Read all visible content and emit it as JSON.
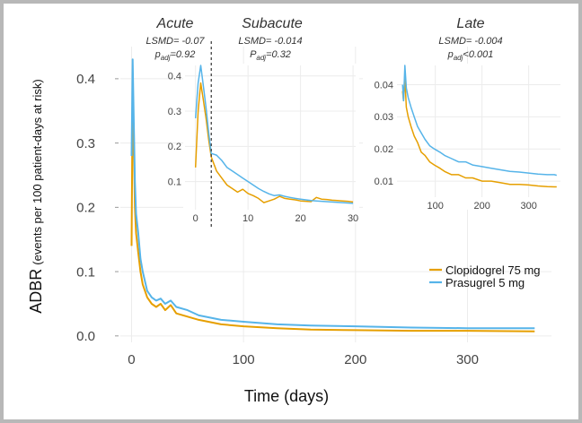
{
  "chart_data": [
    {
      "type": "line",
      "title": "",
      "xlabel": "Time (days)",
      "ylabel": "ADBR",
      "ylabel_note": "(events per 100 patient-days at risk)",
      "xlim": [
        -10,
        375
      ],
      "ylim": [
        -0.01,
        0.45
      ],
      "x_ticks": [
        0,
        100,
        200,
        300
      ],
      "y_ticks": [
        0.0,
        0.1,
        0.2,
        0.3,
        0.4
      ],
      "x_tick_labels": [
        "0",
        "100",
        "200",
        "300"
      ],
      "y_tick_labels": [
        "0.0",
        "0.1",
        "0.2",
        "0.3",
        "0.4"
      ],
      "grid": true,
      "legend": "bottom-right",
      "series": [
        {
          "name": "Clopidogrel 75 mg",
          "color": "#E69F00",
          "points": [
            [
              0,
              0.14
            ],
            [
              1,
              0.38
            ],
            [
              2,
              0.3
            ],
            [
              3,
              0.2
            ],
            [
              4,
              0.16
            ],
            [
              6,
              0.13
            ],
            [
              8,
              0.1
            ],
            [
              10,
              0.08
            ],
            [
              12,
              0.07
            ],
            [
              14,
              0.06
            ],
            [
              18,
              0.05
            ],
            [
              22,
              0.045
            ],
            [
              26,
              0.05
            ],
            [
              30,
              0.04
            ],
            [
              35,
              0.048
            ],
            [
              40,
              0.035
            ],
            [
              50,
              0.03
            ],
            [
              60,
              0.025
            ],
            [
              80,
              0.018
            ],
            [
              100,
              0.015
            ],
            [
              130,
              0.012
            ],
            [
              160,
              0.01
            ],
            [
              200,
              0.009
            ],
            [
              250,
              0.008
            ],
            [
              300,
              0.008
            ],
            [
              360,
              0.007
            ]
          ]
        },
        {
          "name": "Prasugrel 5 mg",
          "color": "#56B4E9",
          "points": [
            [
              0,
              0.28
            ],
            [
              1,
              0.43
            ],
            [
              2,
              0.33
            ],
            [
              3,
              0.24
            ],
            [
              4,
              0.19
            ],
            [
              6,
              0.16
            ],
            [
              8,
              0.12
            ],
            [
              10,
              0.1
            ],
            [
              12,
              0.085
            ],
            [
              14,
              0.07
            ],
            [
              18,
              0.06
            ],
            [
              22,
              0.055
            ],
            [
              26,
              0.058
            ],
            [
              30,
              0.05
            ],
            [
              35,
              0.055
            ],
            [
              40,
              0.045
            ],
            [
              50,
              0.04
            ],
            [
              60,
              0.032
            ],
            [
              80,
              0.025
            ],
            [
              100,
              0.022
            ],
            [
              130,
              0.018
            ],
            [
              160,
              0.016
            ],
            [
              200,
              0.015
            ],
            [
              250,
              0.013
            ],
            [
              300,
              0.012
            ],
            [
              360,
              0.012
            ]
          ]
        }
      ]
    },
    {
      "type": "line",
      "xlim": [
        -2,
        30.5
      ],
      "ylim": [
        0.02,
        0.43
      ],
      "x_ticks": [
        0,
        10,
        20,
        30
      ],
      "y_ticks": [
        0.1,
        0.2,
        0.3,
        0.4
      ],
      "x_tick_labels": [
        "0",
        "10",
        "20",
        "30"
      ],
      "y_tick_labels": [
        "0.1",
        "0.2",
        "0.3",
        "0.4"
      ],
      "grid": true,
      "divider_x": 3,
      "series": [
        {
          "name": "Clopidogrel 75 mg",
          "color": "#E69F00",
          "points": [
            [
              0,
              0.14
            ],
            [
              0.5,
              0.3
            ],
            [
              1,
              0.38
            ],
            [
              1.5,
              0.33
            ],
            [
              2,
              0.28
            ],
            [
              2.5,
              0.22
            ],
            [
              3,
              0.17
            ],
            [
              4,
              0.13
            ],
            [
              5,
              0.11
            ],
            [
              6,
              0.09
            ],
            [
              7,
              0.08
            ],
            [
              8,
              0.07
            ],
            [
              9,
              0.078
            ],
            [
              10,
              0.066
            ],
            [
              11,
              0.06
            ],
            [
              12,
              0.052
            ],
            [
              13,
              0.04
            ],
            [
              14,
              0.045
            ],
            [
              15,
              0.05
            ],
            [
              16,
              0.058
            ],
            [
              17,
              0.052
            ],
            [
              18,
              0.05
            ],
            [
              19,
              0.048
            ],
            [
              20,
              0.045
            ],
            [
              21,
              0.044
            ],
            [
              22,
              0.043
            ],
            [
              23,
              0.055
            ],
            [
              24,
              0.05
            ],
            [
              25,
              0.049
            ],
            [
              26,
              0.047
            ],
            [
              27,
              0.046
            ],
            [
              28,
              0.045
            ],
            [
              29,
              0.044
            ],
            [
              30,
              0.042
            ]
          ]
        },
        {
          "name": "Prasugrel 5 mg",
          "color": "#56B4E9",
          "points": [
            [
              0,
              0.28
            ],
            [
              0.5,
              0.38
            ],
            [
              1,
              0.43
            ],
            [
              1.5,
              0.37
            ],
            [
              2,
              0.31
            ],
            [
              2.5,
              0.24
            ],
            [
              3,
              0.18
            ],
            [
              4,
              0.175
            ],
            [
              5,
              0.16
            ],
            [
              6,
              0.14
            ],
            [
              7,
              0.13
            ],
            [
              8,
              0.12
            ],
            [
              9,
              0.11
            ],
            [
              10,
              0.1
            ],
            [
              11,
              0.09
            ],
            [
              12,
              0.08
            ],
            [
              13,
              0.072
            ],
            [
              14,
              0.065
            ],
            [
              15,
              0.06
            ],
            [
              16,
              0.062
            ],
            [
              17,
              0.058
            ],
            [
              18,
              0.055
            ],
            [
              19,
              0.052
            ],
            [
              20,
              0.05
            ],
            [
              21,
              0.048
            ],
            [
              22,
              0.046
            ],
            [
              23,
              0.045
            ],
            [
              24,
              0.044
            ],
            [
              25,
              0.043
            ],
            [
              26,
              0.042
            ],
            [
              27,
              0.041
            ],
            [
              28,
              0.04
            ],
            [
              29,
              0.039
            ],
            [
              30,
              0.038
            ]
          ]
        }
      ]
    },
    {
      "type": "line",
      "xlim": [
        18,
        368
      ],
      "ylim": [
        0.005,
        0.046
      ],
      "x_ticks": [
        100,
        200,
        300
      ],
      "y_ticks": [
        0.01,
        0.02,
        0.03,
        0.04
      ],
      "x_tick_labels": [
        "100",
        "200",
        "300"
      ],
      "y_tick_labels": [
        "0.01",
        "0.02",
        "0.03",
        "0.04"
      ],
      "grid": true,
      "series": [
        {
          "name": "Clopidogrel 75 mg",
          "color": "#E69F00",
          "points": [
            [
              30,
              0.038
            ],
            [
              32,
              0.035
            ],
            [
              35,
              0.042
            ],
            [
              38,
              0.033
            ],
            [
              42,
              0.03
            ],
            [
              48,
              0.027
            ],
            [
              55,
              0.024
            ],
            [
              62,
              0.022
            ],
            [
              70,
              0.019
            ],
            [
              78,
              0.018
            ],
            [
              88,
              0.016
            ],
            [
              98,
              0.015
            ],
            [
              110,
              0.014
            ],
            [
              120,
              0.013
            ],
            [
              135,
              0.012
            ],
            [
              150,
              0.012
            ],
            [
              165,
              0.011
            ],
            [
              180,
              0.011
            ],
            [
              200,
              0.01
            ],
            [
              220,
              0.01
            ],
            [
              240,
              0.0095
            ],
            [
              260,
              0.009
            ],
            [
              280,
              0.009
            ],
            [
              300,
              0.0088
            ],
            [
              320,
              0.0085
            ],
            [
              340,
              0.0083
            ],
            [
              355,
              0.0082
            ],
            [
              360,
              0.0082
            ]
          ]
        },
        {
          "name": "Prasugrel 5 mg",
          "color": "#56B4E9",
          "points": [
            [
              30,
              0.04
            ],
            [
              32,
              0.035
            ],
            [
              35,
              0.046
            ],
            [
              38,
              0.039
            ],
            [
              42,
              0.036
            ],
            [
              48,
              0.033
            ],
            [
              55,
              0.03
            ],
            [
              62,
              0.027
            ],
            [
              70,
              0.025
            ],
            [
              78,
              0.023
            ],
            [
              88,
              0.021
            ],
            [
              98,
              0.02
            ],
            [
              110,
              0.019
            ],
            [
              120,
              0.018
            ],
            [
              135,
              0.017
            ],
            [
              150,
              0.016
            ],
            [
              165,
              0.016
            ],
            [
              180,
              0.015
            ],
            [
              200,
              0.0145
            ],
            [
              220,
              0.014
            ],
            [
              240,
              0.0135
            ],
            [
              260,
              0.013
            ],
            [
              280,
              0.0128
            ],
            [
              300,
              0.0125
            ],
            [
              320,
              0.0122
            ],
            [
              340,
              0.012
            ],
            [
              355,
              0.012
            ],
            [
              360,
              0.0118
            ]
          ]
        }
      ]
    }
  ],
  "annotations": {
    "acute": {
      "title": "Acute",
      "lsmd": "LSMD= -0.07",
      "p_prefix": "p",
      "p_sub": "adj",
      "p_rest": "=0.92"
    },
    "subacute": {
      "title": "Subacute",
      "lsmd": "LSMD=  -0.014",
      "p_prefix": "P",
      "p_sub": "adj",
      "p_rest": "=0.32"
    },
    "late": {
      "title": "Late",
      "lsmd": "LSMD= -0.004",
      "p_prefix": "p",
      "p_sub": "adj",
      "p_rest": "<0.001"
    }
  },
  "legend_items": [
    {
      "label": "Clopidogrel 75 mg",
      "color": "#E69F00"
    },
    {
      "label": "Prasugrel 5 mg",
      "color": "#56B4E9"
    }
  ]
}
